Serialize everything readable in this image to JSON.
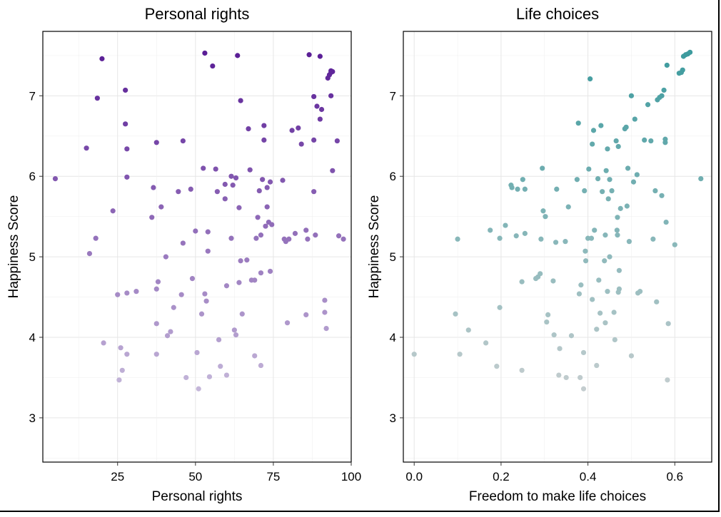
{
  "chart_data": [
    {
      "type": "scatter",
      "title": "Personal rights",
      "xlabel": "Personal rights",
      "ylabel": "Happiness Score",
      "xlim": [
        1,
        100
      ],
      "ylim": [
        2.45,
        7.8
      ],
      "x_ticks": [
        25,
        50,
        75,
        100
      ],
      "x_tick_labels": [
        "25",
        "50",
        "75",
        "100"
      ],
      "y_ticks": [
        3,
        4,
        5,
        6,
        7
      ],
      "y_tick_labels": [
        "3",
        "4",
        "5",
        "6",
        "7"
      ],
      "grid": true,
      "color_low": "#c4b6d9",
      "color_high": "#5a1e96",
      "points": [
        [
          5,
          5.97
        ],
        [
          15,
          6.35
        ],
        [
          16,
          5.04
        ],
        [
          18,
          5.23
        ],
        [
          18.5,
          6.97
        ],
        [
          20,
          7.46
        ],
        [
          20.5,
          3.93
        ],
        [
          23.5,
          5.57
        ],
        [
          25,
          4.53
        ],
        [
          26,
          3.87
        ],
        [
          26.5,
          3.59
        ],
        [
          25.5,
          3.47
        ],
        [
          27.5,
          7.07
        ],
        [
          27.5,
          6.65
        ],
        [
          28,
          6.34
        ],
        [
          28,
          5.99
        ],
        [
          28,
          4.55
        ],
        [
          28,
          3.79
        ],
        [
          31,
          4.57
        ],
        [
          36,
          5.49
        ],
        [
          36.5,
          5.86
        ],
        [
          37.5,
          6.42
        ],
        [
          37.5,
          4.6
        ],
        [
          37.5,
          4.17
        ],
        [
          37.5,
          3.79
        ],
        [
          38,
          4.69
        ],
        [
          39,
          5.62
        ],
        [
          40.5,
          5.0
        ],
        [
          41,
          4.02
        ],
        [
          42,
          4.07
        ],
        [
          43,
          4.37
        ],
        [
          44.5,
          5.81
        ],
        [
          45.5,
          4.53
        ],
        [
          46,
          5.17
        ],
        [
          46,
          6.44
        ],
        [
          47,
          3.5
        ],
        [
          48.5,
          5.84
        ],
        [
          49,
          4.73
        ],
        [
          50,
          5.32
        ],
        [
          50.5,
          3.81
        ],
        [
          51,
          3.36
        ],
        [
          52,
          4.29
        ],
        [
          52.5,
          6.1
        ],
        [
          53,
          4.54
        ],
        [
          53,
          7.53
        ],
        [
          53.5,
          4.45
        ],
        [
          54,
          5.07
        ],
        [
          54,
          5.31
        ],
        [
          54.5,
          3.51
        ],
        [
          55.5,
          7.37
        ],
        [
          56.5,
          6.09
        ],
        [
          57,
          5.81
        ],
        [
          57.5,
          3.97
        ],
        [
          58,
          3.64
        ],
        [
          59.5,
          5.9
        ],
        [
          59.5,
          5.72
        ],
        [
          60,
          3.53
        ],
        [
          60,
          4.64
        ],
        [
          61.5,
          5.23
        ],
        [
          61.5,
          6.0
        ],
        [
          62,
          5.89
        ],
        [
          62.5,
          4.09
        ],
        [
          63,
          4.03
        ],
        [
          63,
          5.98
        ],
        [
          63.5,
          7.5
        ],
        [
          64,
          5.61
        ],
        [
          64,
          4.68
        ],
        [
          64.5,
          4.95
        ],
        [
          64.5,
          6.94
        ],
        [
          65,
          4.29
        ],
        [
          66.5,
          4.96
        ],
        [
          67,
          6.59
        ],
        [
          67.5,
          6.08
        ],
        [
          68,
          4.71
        ],
        [
          69,
          4.71
        ],
        [
          69,
          3.77
        ],
        [
          69.5,
          5.23
        ],
        [
          70,
          5.49
        ],
        [
          70.5,
          5.82
        ],
        [
          71,
          3.65
        ],
        [
          71,
          5.27
        ],
        [
          71,
          4.8
        ],
        [
          71.5,
          5.96
        ],
        [
          72,
          6.63
        ],
        [
          72,
          6.45
        ],
        [
          72.5,
          5.38
        ],
        [
          73,
          5.86
        ],
        [
          73,
          5.62
        ],
        [
          73.5,
          5.43
        ],
        [
          74,
          4.82
        ],
        [
          74,
          5.93
        ],
        [
          74.5,
          5.4
        ],
        [
          78,
          5.95
        ],
        [
          78.5,
          5.22
        ],
        [
          79,
          5.19
        ],
        [
          79.5,
          4.18
        ],
        [
          80,
          5.22
        ],
        [
          81,
          6.57
        ],
        [
          82,
          5.29
        ],
        [
          83,
          6.6
        ],
        [
          84,
          6.4
        ],
        [
          85.5,
          5.33
        ],
        [
          85.5,
          4.28
        ],
        [
          86,
          5.22
        ],
        [
          86.5,
          7.51
        ],
        [
          88,
          6.99
        ],
        [
          88,
          6.45
        ],
        [
          88,
          5.81
        ],
        [
          88.5,
          5.27
        ],
        [
          89,
          6.87
        ],
        [
          90,
          6.71
        ],
        [
          90,
          7.49
        ],
        [
          90.5,
          6.83
        ],
        [
          91.5,
          4.46
        ],
        [
          91.5,
          4.31
        ],
        [
          92,
          4.11
        ],
        [
          92.5,
          7.22
        ],
        [
          93,
          7.26
        ],
        [
          93.5,
          7.29
        ],
        [
          93.5,
          7.31
        ],
        [
          93.5,
          7.0
        ],
        [
          94,
          7.3
        ],
        [
          94,
          6.07
        ],
        [
          95.5,
          6.44
        ],
        [
          96,
          5.26
        ],
        [
          97.5,
          5.22
        ]
      ]
    },
    {
      "type": "scatter",
      "title": "Life choices",
      "xlabel": "Freedom to make life choices",
      "ylabel": "Happiness Score",
      "xlim": [
        -0.025,
        0.685
      ],
      "ylim": [
        2.45,
        7.8
      ],
      "x_ticks": [
        0.0,
        0.2,
        0.4,
        0.6
      ],
      "x_tick_labels": [
        "0.0",
        "0.2",
        "0.4",
        "0.6"
      ],
      "y_ticks": [
        3,
        4,
        5,
        6,
        7
      ],
      "y_tick_labels": [
        "3",
        "4",
        "5",
        "6",
        "7"
      ],
      "grid": true,
      "color_low": "#c4cdcf",
      "color_high": "#3d9b9e",
      "points": [
        [
          0.0,
          3.79
        ],
        [
          0.095,
          4.29
        ],
        [
          0.1,
          5.22
        ],
        [
          0.105,
          3.79
        ],
        [
          0.125,
          4.09
        ],
        [
          0.165,
          3.93
        ],
        [
          0.175,
          5.33
        ],
        [
          0.19,
          3.64
        ],
        [
          0.197,
          4.37
        ],
        [
          0.197,
          5.23
        ],
        [
          0.21,
          5.39
        ],
        [
          0.223,
          5.89
        ],
        [
          0.225,
          5.86
        ],
        [
          0.235,
          5.26
        ],
        [
          0.238,
          5.84
        ],
        [
          0.248,
          3.59
        ],
        [
          0.248,
          4.69
        ],
        [
          0.25,
          5.96
        ],
        [
          0.255,
          5.84
        ],
        [
          0.255,
          5.29
        ],
        [
          0.28,
          4.73
        ],
        [
          0.285,
          4.75
        ],
        [
          0.29,
          4.79
        ],
        [
          0.292,
          5.22
        ],
        [
          0.295,
          6.1
        ],
        [
          0.297,
          5.57
        ],
        [
          0.302,
          5.5
        ],
        [
          0.305,
          4.19
        ],
        [
          0.308,
          4.28
        ],
        [
          0.32,
          4.7
        ],
        [
          0.322,
          4.03
        ],
        [
          0.326,
          5.18
        ],
        [
          0.328,
          5.84
        ],
        [
          0.333,
          3.53
        ],
        [
          0.335,
          3.86
        ],
        [
          0.348,
          5.19
        ],
        [
          0.35,
          3.5
        ],
        [
          0.355,
          5.62
        ],
        [
          0.362,
          4.02
        ],
        [
          0.375,
          5.96
        ],
        [
          0.378,
          6.66
        ],
        [
          0.38,
          4.54
        ],
        [
          0.382,
          3.5
        ],
        [
          0.384,
          4.65
        ],
        [
          0.39,
          3.81
        ],
        [
          0.39,
          3.36
        ],
        [
          0.392,
          5.82
        ],
        [
          0.394,
          5.07
        ],
        [
          0.395,
          4.95
        ],
        [
          0.4,
          5.23
        ],
        [
          0.402,
          6.09
        ],
        [
          0.405,
          7.21
        ],
        [
          0.408,
          5.23
        ],
        [
          0.41,
          4.47
        ],
        [
          0.41,
          6.4
        ],
        [
          0.413,
          6.57
        ],
        [
          0.415,
          5.33
        ],
        [
          0.42,
          3.65
        ],
        [
          0.42,
          4.1
        ],
        [
          0.423,
          5.97
        ],
        [
          0.425,
          4.71
        ],
        [
          0.428,
          4.3
        ],
        [
          0.43,
          6.63
        ],
        [
          0.433,
          5.81
        ],
        [
          0.438,
          4.95
        ],
        [
          0.44,
          5.27
        ],
        [
          0.44,
          4.18
        ],
        [
          0.442,
          6.07
        ],
        [
          0.445,
          6.34
        ],
        [
          0.445,
          4.57
        ],
        [
          0.447,
          5.72
        ],
        [
          0.45,
          5.96
        ],
        [
          0.45,
          5.0
        ],
        [
          0.455,
          5.82
        ],
        [
          0.46,
          4.31
        ],
        [
          0.462,
          3.97
        ],
        [
          0.465,
          6.44
        ],
        [
          0.467,
          5.33
        ],
        [
          0.468,
          5.49
        ],
        [
          0.468,
          5.27
        ],
        [
          0.47,
          4.56
        ],
        [
          0.47,
          6.37
        ],
        [
          0.472,
          4.6
        ],
        [
          0.472,
          4.83
        ],
        [
          0.475,
          5.6
        ],
        [
          0.485,
          6.59
        ],
        [
          0.488,
          6.61
        ],
        [
          0.49,
          5.63
        ],
        [
          0.492,
          6.1
        ],
        [
          0.495,
          5.19
        ],
        [
          0.5,
          7.0
        ],
        [
          0.5,
          3.77
        ],
        [
          0.505,
          5.93
        ],
        [
          0.508,
          6.71
        ],
        [
          0.513,
          6.02
        ],
        [
          0.515,
          4.55
        ],
        [
          0.52,
          4.57
        ],
        [
          0.53,
          6.45
        ],
        [
          0.538,
          6.89
        ],
        [
          0.545,
          6.44
        ],
        [
          0.55,
          5.22
        ],
        [
          0.555,
          5.82
        ],
        [
          0.558,
          4.44
        ],
        [
          0.56,
          6.95
        ],
        [
          0.565,
          6.98
        ],
        [
          0.57,
          7.0
        ],
        [
          0.57,
          5.76
        ],
        [
          0.575,
          7.07
        ],
        [
          0.578,
          6.42
        ],
        [
          0.578,
          6.46
        ],
        [
          0.58,
          5.43
        ],
        [
          0.582,
          7.38
        ],
        [
          0.583,
          3.47
        ],
        [
          0.585,
          4.17
        ],
        [
          0.6,
          5.15
        ],
        [
          0.61,
          7.28
        ],
        [
          0.615,
          7.29
        ],
        [
          0.618,
          7.32
        ],
        [
          0.62,
          7.49
        ],
        [
          0.625,
          7.51
        ],
        [
          0.63,
          7.52
        ],
        [
          0.635,
          7.54
        ],
        [
          0.66,
          5.97
        ]
      ]
    }
  ]
}
